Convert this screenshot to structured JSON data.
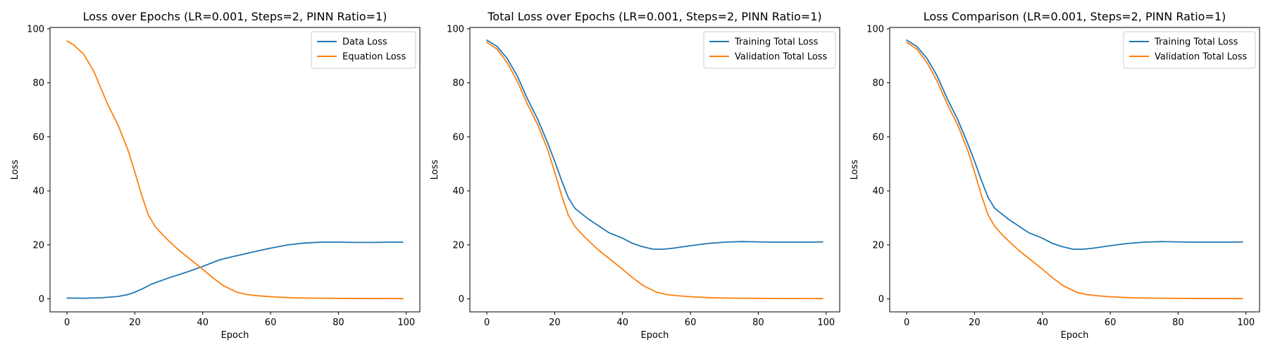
{
  "chart_data": [
    {
      "type": "line",
      "title": "Loss over Epochs (LR=0.001, Steps=2, PINN Ratio=1)",
      "xlabel": "Epoch",
      "ylabel": "Loss",
      "xlim": [
        -5,
        104
      ],
      "ylim": [
        -4.8,
        100.5
      ],
      "xticks": [
        0,
        20,
        40,
        60,
        80,
        100
      ],
      "yticks": [
        0,
        20,
        40,
        60,
        80,
        100
      ],
      "legend_position": "top-right",
      "series": [
        {
          "name": "Data Loss",
          "color": "#1f77b4",
          "points": [
            [
              0,
              0.3
            ],
            [
              5,
              0.25
            ],
            [
              10,
              0.4
            ],
            [
              15,
              0.9
            ],
            [
              18,
              1.6
            ],
            [
              20,
              2.5
            ],
            [
              22,
              3.6
            ],
            [
              25,
              5.5
            ],
            [
              30,
              7.8
            ],
            [
              35,
              9.8
            ],
            [
              40,
              12
            ],
            [
              45,
              14.5
            ],
            [
              50,
              16
            ],
            [
              55,
              17.4
            ],
            [
              60,
              18.8
            ],
            [
              65,
              20
            ],
            [
              70,
              20.7
            ],
            [
              75,
              21
            ],
            [
              80,
              21
            ],
            [
              85,
              20.9
            ],
            [
              90,
              20.9
            ],
            [
              95,
              21
            ],
            [
              99,
              21
            ]
          ]
        },
        {
          "name": "Equation Loss",
          "color": "#ff7f0e",
          "points": [
            [
              0,
              95.5
            ],
            [
              2,
              94
            ],
            [
              5,
              90.5
            ],
            [
              8,
              84
            ],
            [
              10,
              78
            ],
            [
              12,
              72
            ],
            [
              15,
              64.5
            ],
            [
              18,
              55
            ],
            [
              20,
              47
            ],
            [
              22,
              38.5
            ],
            [
              24,
              31
            ],
            [
              26,
              26.8
            ],
            [
              28,
              24
            ],
            [
              30,
              21.5
            ],
            [
              33,
              18
            ],
            [
              36,
              15
            ],
            [
              40,
              11
            ],
            [
              43,
              7.8
            ],
            [
              46,
              5
            ],
            [
              50,
              2.5
            ],
            [
              53,
              1.6
            ],
            [
              56,
              1.2
            ],
            [
              60,
              0.8
            ],
            [
              65,
              0.5
            ],
            [
              70,
              0.3
            ],
            [
              80,
              0.2
            ],
            [
              99,
              0.1
            ]
          ]
        }
      ]
    },
    {
      "type": "line",
      "title": "Total Loss over Epochs (LR=0.001, Steps=2, PINN Ratio=1)",
      "xlabel": "Epoch",
      "ylabel": "Loss",
      "xlim": [
        -5,
        104
      ],
      "ylim": [
        -4.8,
        100.5
      ],
      "xticks": [
        0,
        20,
        40,
        60,
        80,
        100
      ],
      "yticks": [
        0,
        20,
        40,
        60,
        80,
        100
      ],
      "legend_position": "top-right",
      "series": [
        {
          "name": "Training Total Loss",
          "color": "#1f77b4",
          "points": [
            [
              0,
              95.8
            ],
            [
              3,
              93.5
            ],
            [
              6,
              89
            ],
            [
              9,
              82.5
            ],
            [
              12,
              74
            ],
            [
              15,
              66.5
            ],
            [
              18,
              57.5
            ],
            [
              20,
              51
            ],
            [
              22,
              44
            ],
            [
              24,
              37.5
            ],
            [
              26,
              33.5
            ],
            [
              28,
              31.5
            ],
            [
              30,
              29.5
            ],
            [
              33,
              27
            ],
            [
              36,
              24.5
            ],
            [
              40,
              22.5
            ],
            [
              43,
              20.5
            ],
            [
              46,
              19.3
            ],
            [
              49,
              18.4
            ],
            [
              52,
              18.4
            ],
            [
              55,
              18.8
            ],
            [
              60,
              19.7
            ],
            [
              65,
              20.5
            ],
            [
              70,
              21
            ],
            [
              75,
              21.2
            ],
            [
              80,
              21.1
            ],
            [
              85,
              21
            ],
            [
              90,
              21
            ],
            [
              95,
              21
            ],
            [
              99,
              21.1
            ]
          ]
        },
        {
          "name": "Validation Total Loss",
          "color": "#ff7f0e",
          "points": [
            [
              0,
              95
            ],
            [
              3,
              92.5
            ],
            [
              6,
              87.5
            ],
            [
              9,
              80.5
            ],
            [
              12,
              72
            ],
            [
              15,
              64.5
            ],
            [
              18,
              55
            ],
            [
              20,
              47
            ],
            [
              22,
              38.5
            ],
            [
              24,
              31
            ],
            [
              26,
              26.8
            ],
            [
              28,
              24
            ],
            [
              30,
              21.5
            ],
            [
              33,
              18
            ],
            [
              36,
              15
            ],
            [
              40,
              11
            ],
            [
              43,
              7.8
            ],
            [
              46,
              5
            ],
            [
              50,
              2.5
            ],
            [
              53,
              1.6
            ],
            [
              56,
              1.2
            ],
            [
              60,
              0.8
            ],
            [
              65,
              0.5
            ],
            [
              70,
              0.3
            ],
            [
              80,
              0.2
            ],
            [
              99,
              0.1
            ]
          ]
        }
      ]
    },
    {
      "type": "line",
      "title": "Loss Comparison (LR=0.001, Steps=2, PINN Ratio=1)",
      "xlabel": "Epoch",
      "ylabel": "Loss",
      "xlim": [
        -5,
        104
      ],
      "ylim": [
        -4.8,
        100.5
      ],
      "xticks": [
        0,
        20,
        40,
        60,
        80,
        100
      ],
      "yticks": [
        0,
        20,
        40,
        60,
        80,
        100
      ],
      "legend_position": "top-right",
      "series": [
        {
          "name": "Training Total Loss",
          "color": "#1f77b4",
          "points": [
            [
              0,
              95.8
            ],
            [
              3,
              93.5
            ],
            [
              6,
              89
            ],
            [
              9,
              82.5
            ],
            [
              12,
              74
            ],
            [
              15,
              66.5
            ],
            [
              18,
              57.5
            ],
            [
              20,
              51
            ],
            [
              22,
              44
            ],
            [
              24,
              37.5
            ],
            [
              26,
              33.5
            ],
            [
              28,
              31.5
            ],
            [
              30,
              29.5
            ],
            [
              33,
              27
            ],
            [
              36,
              24.5
            ],
            [
              40,
              22.5
            ],
            [
              43,
              20.5
            ],
            [
              46,
              19.3
            ],
            [
              49,
              18.4
            ],
            [
              52,
              18.4
            ],
            [
              55,
              18.8
            ],
            [
              60,
              19.7
            ],
            [
              65,
              20.5
            ],
            [
              70,
              21
            ],
            [
              75,
              21.2
            ],
            [
              80,
              21.1
            ],
            [
              85,
              21
            ],
            [
              90,
              21
            ],
            [
              95,
              21
            ],
            [
              99,
              21.1
            ]
          ]
        },
        {
          "name": "Validation Total Loss",
          "color": "#ff7f0e",
          "points": [
            [
              0,
              95
            ],
            [
              3,
              92.5
            ],
            [
              6,
              87.5
            ],
            [
              9,
              80.5
            ],
            [
              12,
              72
            ],
            [
              15,
              64.5
            ],
            [
              18,
              55
            ],
            [
              20,
              47
            ],
            [
              22,
              38.5
            ],
            [
              24,
              31
            ],
            [
              26,
              26.8
            ],
            [
              28,
              24
            ],
            [
              30,
              21.5
            ],
            [
              33,
              18
            ],
            [
              36,
              15
            ],
            [
              40,
              11
            ],
            [
              43,
              7.8
            ],
            [
              46,
              5
            ],
            [
              50,
              2.5
            ],
            [
              53,
              1.6
            ],
            [
              56,
              1.2
            ],
            [
              60,
              0.8
            ],
            [
              65,
              0.5
            ],
            [
              70,
              0.3
            ],
            [
              80,
              0.2
            ],
            [
              99,
              0.1
            ]
          ]
        }
      ]
    }
  ]
}
